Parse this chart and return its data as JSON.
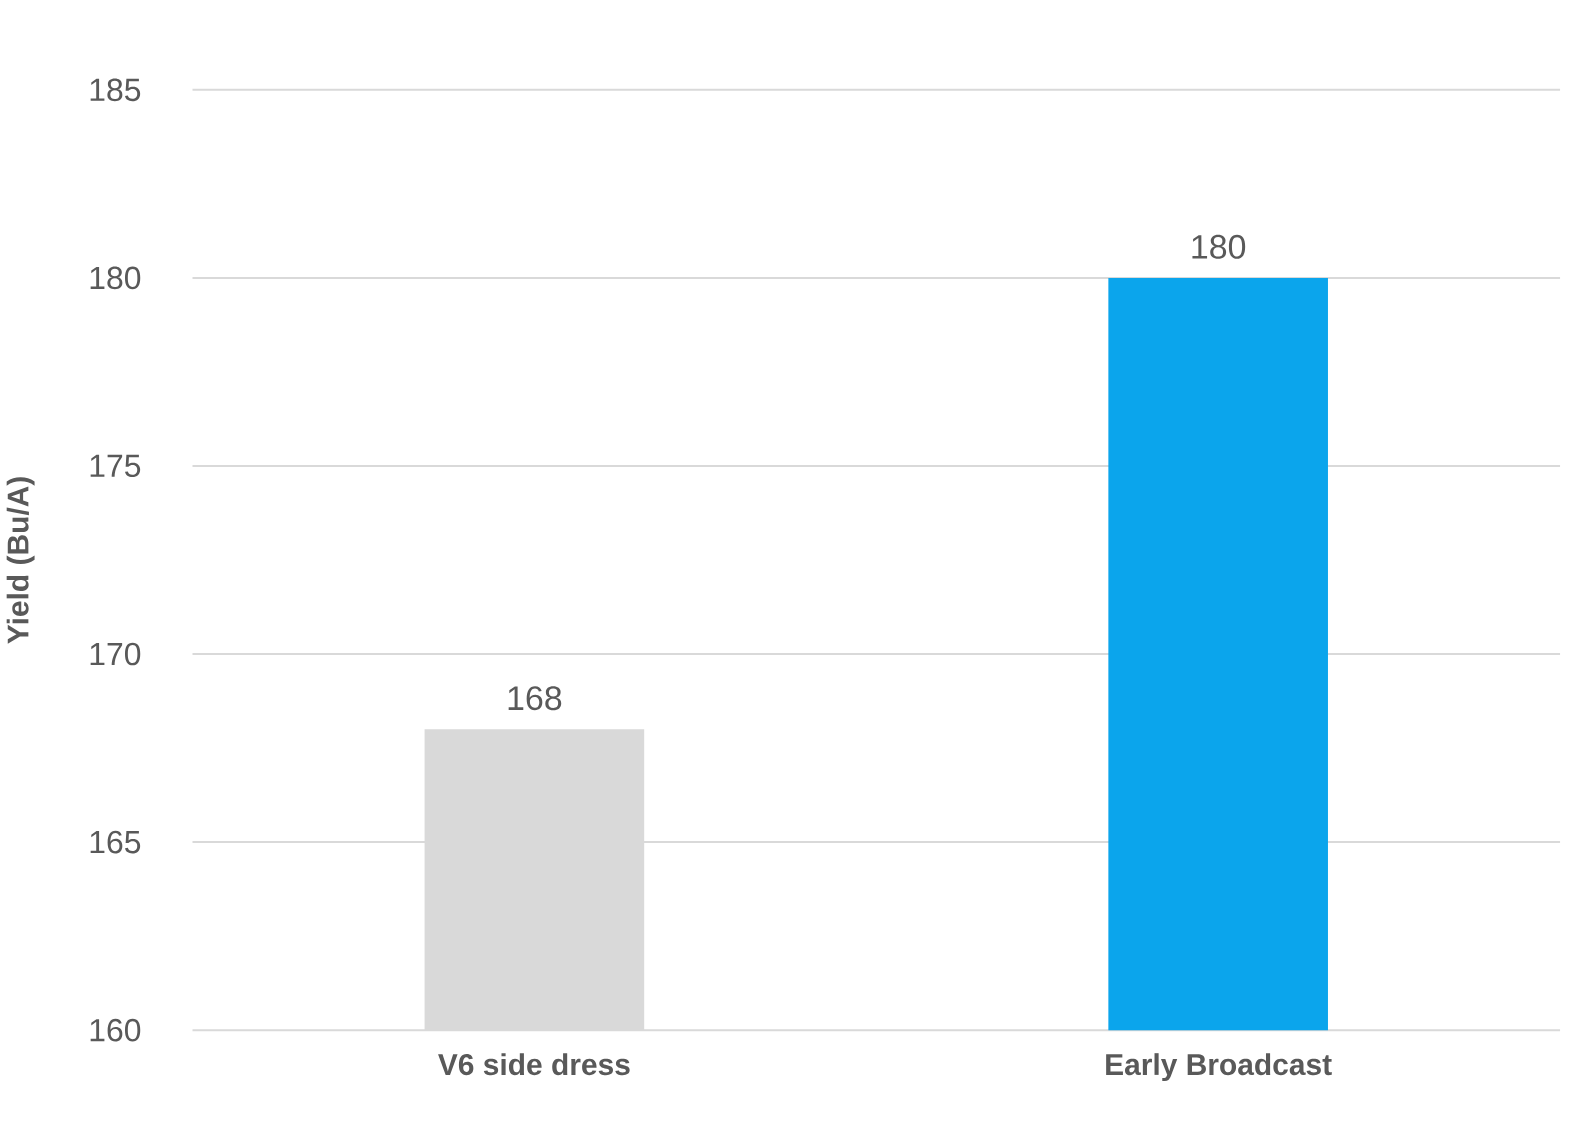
{
  "chart_data": {
    "type": "bar",
    "ylabel": "Yield (Bu/A)",
    "categories": [
      "V6 side dress",
      "Early Broadcast"
    ],
    "values": [
      168,
      180
    ],
    "colors": [
      "#d9d9d9",
      "#0ba5ec"
    ],
    "ylim": [
      160,
      185
    ],
    "yticks": [
      160,
      165,
      170,
      175,
      180,
      185
    ],
    "grid": "y",
    "data_labels": true
  }
}
